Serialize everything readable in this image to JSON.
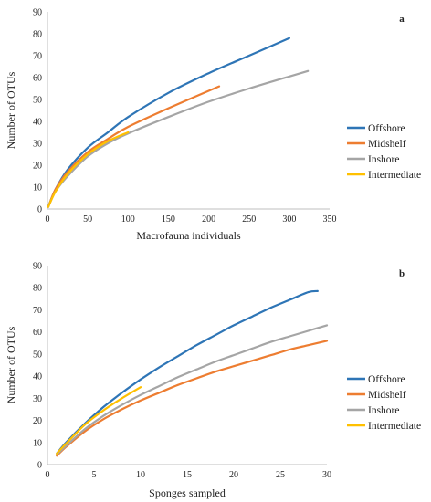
{
  "chart_data": [
    {
      "type": "line",
      "panel_label": "a",
      "xlabel": "Macrofauna individuals",
      "ylabel": "Number of OTUs",
      "xlim": [
        0,
        350
      ],
      "ylim": [
        0,
        90
      ],
      "xticks": [
        0,
        50,
        100,
        150,
        200,
        250,
        300,
        350
      ],
      "yticks": [
        0,
        10,
        20,
        30,
        40,
        50,
        60,
        70,
        80,
        90
      ],
      "grid": false,
      "legend_position": "right",
      "series": [
        {
          "name": "Offshore",
          "color": "#2e75b6",
          "x": [
            1,
            10,
            25,
            50,
            75,
            100,
            150,
            200,
            250,
            300
          ],
          "y": [
            1,
            9,
            18,
            28,
            35,
            42,
            53,
            62,
            70,
            78
          ]
        },
        {
          "name": "Midshelf",
          "color": "#ed7d31",
          "x": [
            1,
            10,
            25,
            50,
            75,
            100,
            150,
            213
          ],
          "y": [
            1,
            9,
            17,
            26,
            32,
            37.5,
            46,
            56
          ]
        },
        {
          "name": "Inshore",
          "color": "#a5a5a5",
          "x": [
            1,
            10,
            25,
            50,
            75,
            100,
            150,
            200,
            250,
            300,
            323
          ],
          "y": [
            1,
            8,
            15,
            24,
            30,
            34.5,
            42,
            49,
            55,
            60.5,
            63
          ]
        },
        {
          "name": "Intermediate",
          "color": "#ffc000",
          "x": [
            1,
            10,
            25,
            50,
            75,
            100
          ],
          "y": [
            1,
            8,
            16,
            25,
            31,
            35
          ]
        }
      ]
    },
    {
      "type": "line",
      "panel_label": "b",
      "xlabel": "Sponges sampled",
      "ylabel": "Number of OTUs",
      "xlim": [
        0,
        30
      ],
      "ylim": [
        0,
        90
      ],
      "xticks": [
        0,
        5,
        10,
        15,
        20,
        25,
        30
      ],
      "yticks": [
        0,
        10,
        20,
        30,
        40,
        50,
        60,
        70,
        80,
        90
      ],
      "grid": false,
      "legend_position": "right",
      "series": [
        {
          "name": "Offshore",
          "color": "#2e75b6",
          "x": [
            1,
            2,
            4,
            6,
            8,
            10,
            12,
            14,
            16,
            18,
            20,
            22,
            24,
            26,
            28,
            29
          ],
          "y": [
            5,
            10,
            18.5,
            26,
            32.5,
            38.5,
            44,
            49,
            54,
            58.5,
            63,
            67,
            71,
            74.5,
            78,
            78.5
          ]
        },
        {
          "name": "Midshelf",
          "color": "#ed7d31",
          "x": [
            1,
            2,
            4,
            6,
            8,
            10,
            12,
            14,
            16,
            18,
            20,
            22,
            24,
            26,
            28,
            30
          ],
          "y": [
            4,
            8,
            15,
            20.5,
            25,
            29,
            32.5,
            36,
            39,
            42,
            44.5,
            47,
            49.5,
            52,
            54,
            56
          ]
        },
        {
          "name": "Inshore",
          "color": "#a5a5a5",
          "x": [
            1,
            2,
            4,
            6,
            8,
            10,
            12,
            14,
            16,
            18,
            20,
            22,
            24,
            26,
            28,
            30
          ],
          "y": [
            4.5,
            8.5,
            16,
            22,
            27,
            31.5,
            35.5,
            39.5,
            43,
            46.5,
            49.5,
            52.5,
            55.5,
            58,
            60.5,
            63
          ]
        },
        {
          "name": "Intermediate",
          "color": "#ffc000",
          "x": [
            1,
            2,
            4,
            6,
            8,
            10
          ],
          "y": [
            5,
            9.5,
            18,
            24.5,
            30,
            35
          ]
        }
      ]
    }
  ]
}
